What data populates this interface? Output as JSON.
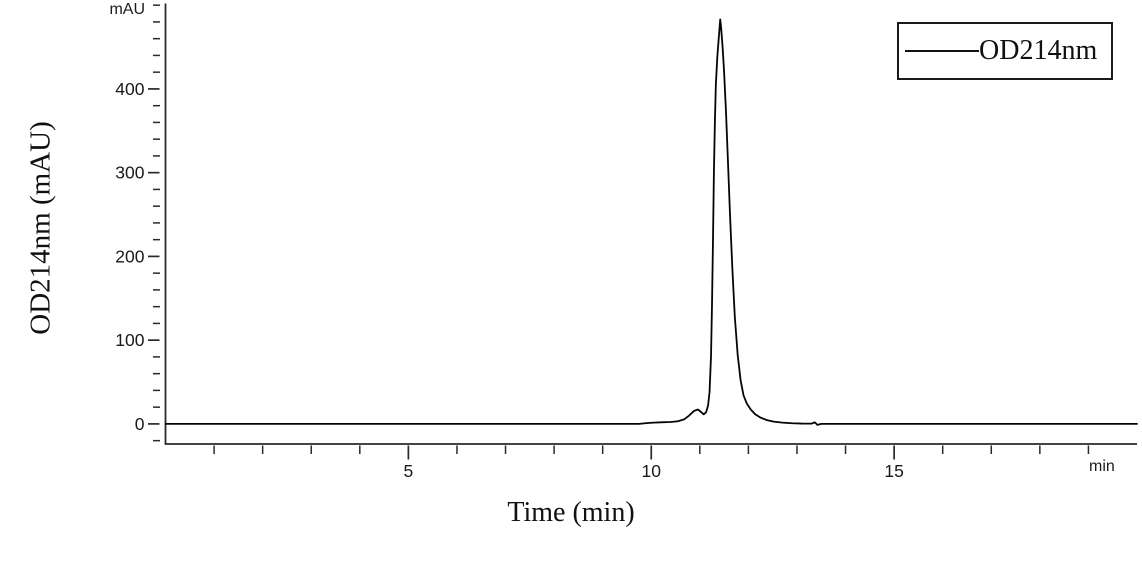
{
  "chart_data": {
    "type": "line",
    "title": "",
    "xlabel": "Time (min)",
    "ylabel": "OD214nm (mAU)",
    "x_unit_label": "min",
    "y_unit_label": "mAU",
    "xlim": [
      0,
      20
    ],
    "ylim": [
      -24,
      502
    ],
    "x_major_ticks": [
      5,
      10,
      15
    ],
    "x_major_tick_labels": [
      "5",
      "10",
      "15"
    ],
    "x_minor_step": 1,
    "y_major_ticks": [
      0,
      100,
      200,
      300,
      400
    ],
    "y_major_tick_labels": [
      "0",
      "100",
      "200",
      "300",
      "400"
    ],
    "y_minor_step": 20,
    "grid": false,
    "legend_position": "top-right",
    "line_color": "#050505",
    "axis_color": "#2a2a2a",
    "label_color": "#1a1a1a",
    "background_color": "#ffffff",
    "series": [
      {
        "name": "OD214nm",
        "points": [
          [
            0,
            0
          ],
          [
            1,
            0
          ],
          [
            2,
            0
          ],
          [
            3,
            0
          ],
          [
            4,
            0
          ],
          [
            5,
            0
          ],
          [
            6,
            0
          ],
          [
            7,
            0
          ],
          [
            8,
            0
          ],
          [
            8.8,
            0
          ],
          [
            9.4,
            0
          ],
          [
            9.75,
            0
          ],
          [
            9.85,
            0.6
          ],
          [
            10.0,
            1.4
          ],
          [
            10.2,
            1.9
          ],
          [
            10.4,
            2.3
          ],
          [
            10.55,
            3.2
          ],
          [
            10.68,
            5.5
          ],
          [
            10.78,
            10
          ],
          [
            10.88,
            15.5
          ],
          [
            10.96,
            17.2
          ],
          [
            11.02,
            14.5
          ],
          [
            11.08,
            11.5
          ],
          [
            11.13,
            14
          ],
          [
            11.17,
            22
          ],
          [
            11.2,
            38
          ],
          [
            11.23,
            80
          ],
          [
            11.25,
            140
          ],
          [
            11.27,
            215
          ],
          [
            11.29,
            300
          ],
          [
            11.31,
            360
          ],
          [
            11.33,
            405
          ],
          [
            11.36,
            438
          ],
          [
            11.39,
            461
          ],
          [
            11.42,
            483
          ],
          [
            11.44,
            472
          ],
          [
            11.47,
            449
          ],
          [
            11.5,
            420
          ],
          [
            11.54,
            371
          ],
          [
            11.58,
            312
          ],
          [
            11.62,
            252
          ],
          [
            11.67,
            185
          ],
          [
            11.72,
            128
          ],
          [
            11.78,
            82
          ],
          [
            11.84,
            52
          ],
          [
            11.9,
            34
          ],
          [
            11.97,
            24
          ],
          [
            12.05,
            17
          ],
          [
            12.14,
            11.5
          ],
          [
            12.25,
            7.5
          ],
          [
            12.38,
            4.5
          ],
          [
            12.52,
            2.7
          ],
          [
            12.7,
            1.5
          ],
          [
            12.9,
            0.8
          ],
          [
            13.1,
            0.4
          ],
          [
            13.3,
            0.3
          ],
          [
            13.37,
            1.8
          ],
          [
            13.42,
            -1.2
          ],
          [
            13.5,
            0
          ],
          [
            14,
            0
          ],
          [
            14.5,
            0
          ],
          [
            15,
            0
          ],
          [
            15.5,
            0
          ],
          [
            16,
            0
          ],
          [
            16.5,
            0
          ],
          [
            17,
            0
          ],
          [
            17.5,
            0
          ],
          [
            18,
            0
          ],
          [
            18.5,
            0
          ],
          [
            19,
            0
          ],
          [
            19.5,
            0
          ],
          [
            20,
            0
          ]
        ]
      }
    ]
  }
}
